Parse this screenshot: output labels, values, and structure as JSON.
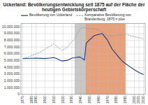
{
  "chart_data": {
    "type": "line",
    "title": "Uckerland: Bevölkerungsentwicklung seit 1875 auf der Fläche der\nheutigen Gebietskörperschaft",
    "x": [
      1875,
      1880,
      1885,
      1890,
      1895,
      1900,
      1905,
      1910,
      1913,
      1919,
      1925,
      1930,
      1933,
      1936,
      1939,
      1944,
      1946,
      1950,
      1955,
      1960,
      1964,
      1970,
      1975,
      1980,
      1985,
      1990,
      1995,
      2000,
      2005,
      2010
    ],
    "series": [
      {
        "name": "Bevölkerung von Uckerland",
        "color": "#1a3a8a",
        "line_style": "solid",
        "values": [
          5300000,
          5330000,
          5350000,
          5370000,
          5340000,
          5310000,
          5380000,
          5450000,
          5300000,
          4950000,
          5050000,
          5380000,
          5430000,
          5500000,
          5550000,
          5100000,
          7600000,
          8100000,
          8700000,
          8900000,
          9000000,
          8000000,
          6700000,
          5900000,
          5100000,
          4550000,
          4100000,
          3650000,
          3250000,
          2950000
        ]
      },
      {
        "name": "Komparative Bevölkerung von\nBrandenburg, 1875 = plus",
        "color": "#999999",
        "line_style": "dashed",
        "values": [
          5300000,
          5500000,
          5750000,
          6000000,
          6300000,
          6700000,
          7100000,
          7500000,
          7100000,
          6500000,
          7000000,
          7800000,
          8200000,
          9000000,
          9700000,
          9900000,
          9850000,
          9750000,
          9700000,
          9600000,
          9300000,
          8700000,
          8650000,
          8750000,
          8850000,
          8950000,
          8700000,
          8550000,
          8400000,
          8250000
        ]
      }
    ],
    "bands": [
      {
        "start": 1933,
        "end": 1945,
        "color": "#c8c8c8"
      },
      {
        "start": 1945,
        "end": 1990,
        "color": "#e8a07a"
      }
    ],
    "xlim": [
      1873,
      2012
    ],
    "xticks": [
      1875,
      1885,
      1890,
      1900,
      1910,
      1920,
      1930,
      1940,
      1950,
      1960,
      1970,
      1980,
      1990,
      2000,
      2005,
      2010
    ],
    "ylim": [
      0,
      10500000
    ],
    "yticks": [
      0,
      {
        "value": 1000000,
        "label": "1.000.000"
      },
      {
        "value": 2000000,
        "label": "2.000.000"
      },
      {
        "value": 3000000,
        "label": "3.000.000"
      },
      {
        "value": 4000000,
        "label": "4.000.000"
      },
      {
        "value": 5000000,
        "label": "5.000.000"
      },
      {
        "value": 6000000,
        "label": "6.000.000"
      },
      {
        "value": 7000000,
        "label": "7.000.000"
      },
      {
        "value": 8000000,
        "label": "8.000.000"
      },
      {
        "value": 9000000,
        "label": "9.000.000"
      },
      {
        "value": 10000000,
        "label": "10.000.000"
      }
    ],
    "grid": true,
    "legend": "upper left"
  }
}
